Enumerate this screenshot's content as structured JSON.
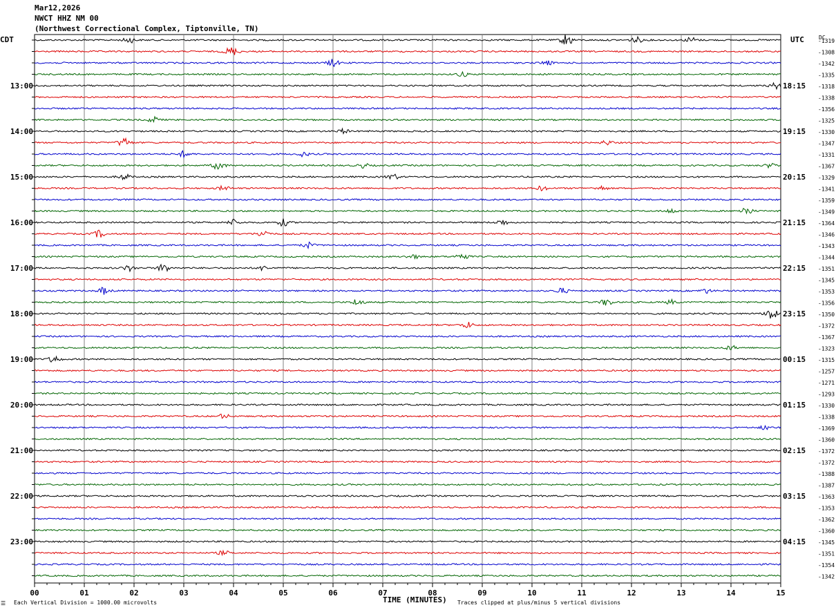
{
  "header": {
    "date": "Mar12,2026",
    "station": "NWCT HHZ NM 00",
    "location": "(Northwest Correctional Complex, Tiptonville, TN)"
  },
  "axis_tags": {
    "left": "CDT",
    "right": "UTC",
    "dc": "DC"
  },
  "footer": {
    "scale": "Each Vertical Division = 1000.00 microvolts",
    "clip": "Traces clipped at plus/minus 5 vertical divisions",
    "corner_mark": "☰"
  },
  "colors": {
    "trace_cycle": [
      "#000000",
      "#dd0000",
      "#0000cc",
      "#006400"
    ],
    "grid": "#808080"
  },
  "chart_data": {
    "type": "line",
    "title": "",
    "xlabel": "TIME (MINUTES)",
    "xlim": [
      0,
      15
    ],
    "x_ticks": [
      "00",
      "01",
      "02",
      "03",
      "04",
      "05",
      "06",
      "07",
      "08",
      "09",
      "10",
      "11",
      "12",
      "13",
      "14",
      "15"
    ],
    "rows_per_hour": 4,
    "left_hour_labels": [
      "13:00",
      "14:00",
      "15:00",
      "16:00",
      "17:00",
      "18:00",
      "19:00",
      "20:00",
      "21:00",
      "22:00",
      "23:00"
    ],
    "right_hour_labels": [
      "18:15",
      "19:15",
      "20:15",
      "21:15",
      "22:15",
      "23:15",
      "00:15",
      "01:15",
      "02:15",
      "03:15",
      "04:15"
    ],
    "dc_offsets": [
      -1319,
      -1308,
      -1342,
      -1335,
      -1318,
      -1338,
      -1356,
      -1325,
      -1330,
      -1347,
      -1331,
      -1367,
      -1329,
      -1341,
      -1359,
      -1349,
      -1364,
      -1346,
      -1343,
      -1344,
      -1351,
      -1345,
      -1353,
      -1356,
      -1350,
      -1372,
      -1367,
      -1323,
      -1315,
      -1257,
      -1271,
      -1293,
      -1330,
      -1338,
      -1369,
      -1360,
      -1372,
      -1372,
      -1388,
      -1387,
      -1363,
      -1353,
      -1362,
      -1360,
      -1345,
      -1351,
      -1354,
      -1342
    ],
    "bursts": [
      {
        "row": 0,
        "min": 10.7,
        "amp": 9
      },
      {
        "row": 0,
        "min": 1.9,
        "amp": 4
      },
      {
        "row": 0,
        "min": 12.1,
        "amp": 4
      },
      {
        "row": 0,
        "min": 13.2,
        "amp": 4
      },
      {
        "row": 1,
        "min": 4.0,
        "amp": 4
      },
      {
        "row": 1,
        "min": 3.9,
        "amp": 3
      },
      {
        "row": 2,
        "min": 6.0,
        "amp": 5
      },
      {
        "row": 2,
        "min": 10.3,
        "amp": 3
      },
      {
        "row": 3,
        "min": 8.6,
        "amp": 3
      },
      {
        "row": 4,
        "min": 14.9,
        "amp": 4
      },
      {
        "row": 7,
        "min": 2.4,
        "amp": 4
      },
      {
        "row": 8,
        "min": 6.2,
        "amp": 3
      },
      {
        "row": 9,
        "min": 1.8,
        "amp": 7
      },
      {
        "row": 9,
        "min": 11.5,
        "amp": 3
      },
      {
        "row": 10,
        "min": 3.0,
        "amp": 4
      },
      {
        "row": 10,
        "min": 5.4,
        "amp": 3
      },
      {
        "row": 11,
        "min": 3.7,
        "amp": 6
      },
      {
        "row": 11,
        "min": 6.6,
        "amp": 3
      },
      {
        "row": 11,
        "min": 14.8,
        "amp": 3
      },
      {
        "row": 12,
        "min": 1.8,
        "amp": 4
      },
      {
        "row": 12,
        "min": 7.2,
        "amp": 4
      },
      {
        "row": 13,
        "min": 3.8,
        "amp": 3
      },
      {
        "row": 13,
        "min": 10.2,
        "amp": 3
      },
      {
        "row": 13,
        "min": 11.4,
        "amp": 3
      },
      {
        "row": 15,
        "min": 12.8,
        "amp": 3
      },
      {
        "row": 15,
        "min": 14.3,
        "amp": 6
      },
      {
        "row": 16,
        "min": 5.0,
        "amp": 5
      },
      {
        "row": 16,
        "min": 4.0,
        "amp": 4
      },
      {
        "row": 16,
        "min": 9.4,
        "amp": 4
      },
      {
        "row": 17,
        "min": 1.3,
        "amp": 5
      },
      {
        "row": 17,
        "min": 4.6,
        "amp": 5
      },
      {
        "row": 18,
        "min": 5.5,
        "amp": 4
      },
      {
        "row": 19,
        "min": 8.6,
        "amp": 5
      },
      {
        "row": 19,
        "min": 7.6,
        "amp": 3
      },
      {
        "row": 20,
        "min": 2.6,
        "amp": 6
      },
      {
        "row": 20,
        "min": 1.9,
        "amp": 4
      },
      {
        "row": 20,
        "min": 4.6,
        "amp": 3
      },
      {
        "row": 22,
        "min": 1.4,
        "amp": 5
      },
      {
        "row": 22,
        "min": 10.6,
        "amp": 4
      },
      {
        "row": 22,
        "min": 13.5,
        "amp": 3
      },
      {
        "row": 23,
        "min": 6.5,
        "amp": 5
      },
      {
        "row": 23,
        "min": 11.5,
        "amp": 5
      },
      {
        "row": 23,
        "min": 12.8,
        "amp": 3
      },
      {
        "row": 24,
        "min": 14.8,
        "amp": 9
      },
      {
        "row": 25,
        "min": 8.7,
        "amp": 4
      },
      {
        "row": 27,
        "min": 14.0,
        "amp": 3
      },
      {
        "row": 28,
        "min": 0.4,
        "amp": 5
      },
      {
        "row": 33,
        "min": 3.8,
        "amp": 3
      },
      {
        "row": 34,
        "min": 14.7,
        "amp": 3
      },
      {
        "row": 45,
        "min": 3.8,
        "amp": 3
      }
    ]
  }
}
